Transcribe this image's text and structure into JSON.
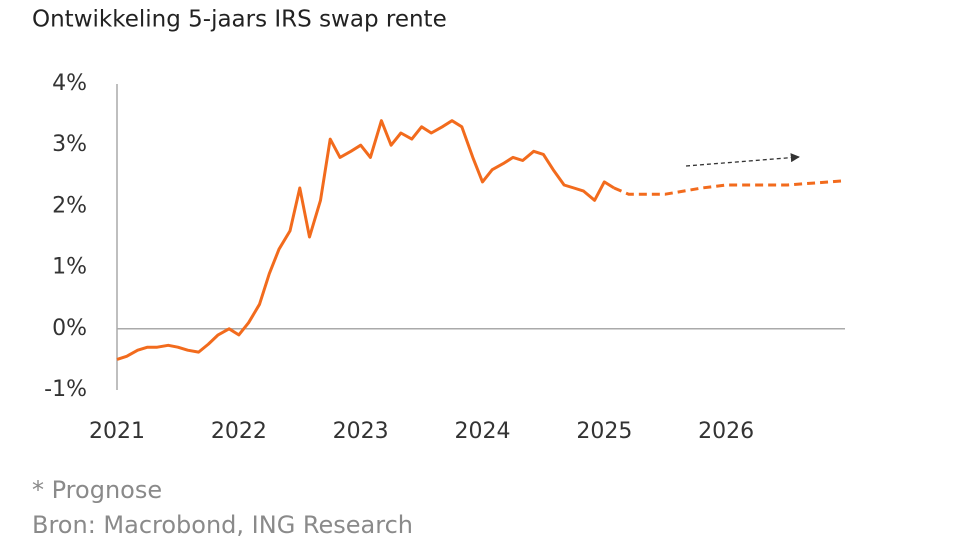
{
  "chart_data": {
    "type": "line",
    "title": "Ontwikkeling 5-jaars IRS swap rente",
    "notes": [
      "* Prognose",
      "Bron: Macrobond, ING Research"
    ],
    "xlim": [
      2021,
      2027
    ],
    "xticks": [
      2021,
      2022,
      2023,
      2024,
      2025,
      2026
    ],
    "ylim": [
      -1,
      4
    ],
    "yticks": [
      {
        "value": -1,
        "label": "-1%"
      },
      {
        "value": 0,
        "label": "0%"
      },
      {
        "value": 1,
        "label": "1%"
      },
      {
        "value": 2,
        "label": "2%"
      },
      {
        "value": 3,
        "label": "3%"
      },
      {
        "value": 4,
        "label": "4%"
      }
    ],
    "grid": false,
    "series": [
      {
        "color": "#f26b1d",
        "dashed": false,
        "x": [
          2021.0,
          2021.08,
          2021.17,
          2021.25,
          2021.33,
          2021.42,
          2021.5,
          2021.58,
          2021.67,
          2021.75,
          2021.83,
          2021.92,
          2022.0,
          2022.08,
          2022.17,
          2022.25,
          2022.33,
          2022.42,
          2022.5,
          2022.58,
          2022.67,
          2022.75,
          2022.83,
          2022.92,
          2023.0,
          2023.08,
          2023.17,
          2023.25,
          2023.33,
          2023.42,
          2023.5,
          2023.58,
          2023.67,
          2023.75,
          2023.83,
          2023.92,
          2024.0,
          2024.08,
          2024.17,
          2024.25,
          2024.33,
          2024.42,
          2024.5,
          2024.58,
          2024.67,
          2024.75,
          2024.83,
          2024.92,
          2025.0,
          2025.08
        ],
        "values": [
          -0.5,
          -0.45,
          -0.35,
          -0.3,
          -0.3,
          -0.27,
          -0.3,
          -0.35,
          -0.38,
          -0.25,
          -0.1,
          0.0,
          -0.1,
          0.1,
          0.4,
          0.9,
          1.3,
          1.6,
          2.3,
          1.5,
          2.1,
          3.1,
          2.8,
          2.9,
          3.0,
          2.8,
          3.4,
          3.0,
          3.2,
          3.1,
          3.3,
          3.2,
          3.3,
          3.4,
          3.3,
          2.8,
          2.4,
          2.6,
          2.7,
          2.8,
          2.75,
          2.9,
          2.85,
          2.6,
          2.35,
          2.3,
          2.25,
          2.1,
          2.4,
          2.3
        ]
      },
      {
        "color": "#f26b1d",
        "dashed": true,
        "x": [
          2025.08,
          2025.2,
          2025.5,
          2025.8,
          2026.0,
          2026.5,
          2026.98
        ],
        "values": [
          2.3,
          2.2,
          2.2,
          2.3,
          2.35,
          2.35,
          2.42
        ]
      }
    ]
  }
}
